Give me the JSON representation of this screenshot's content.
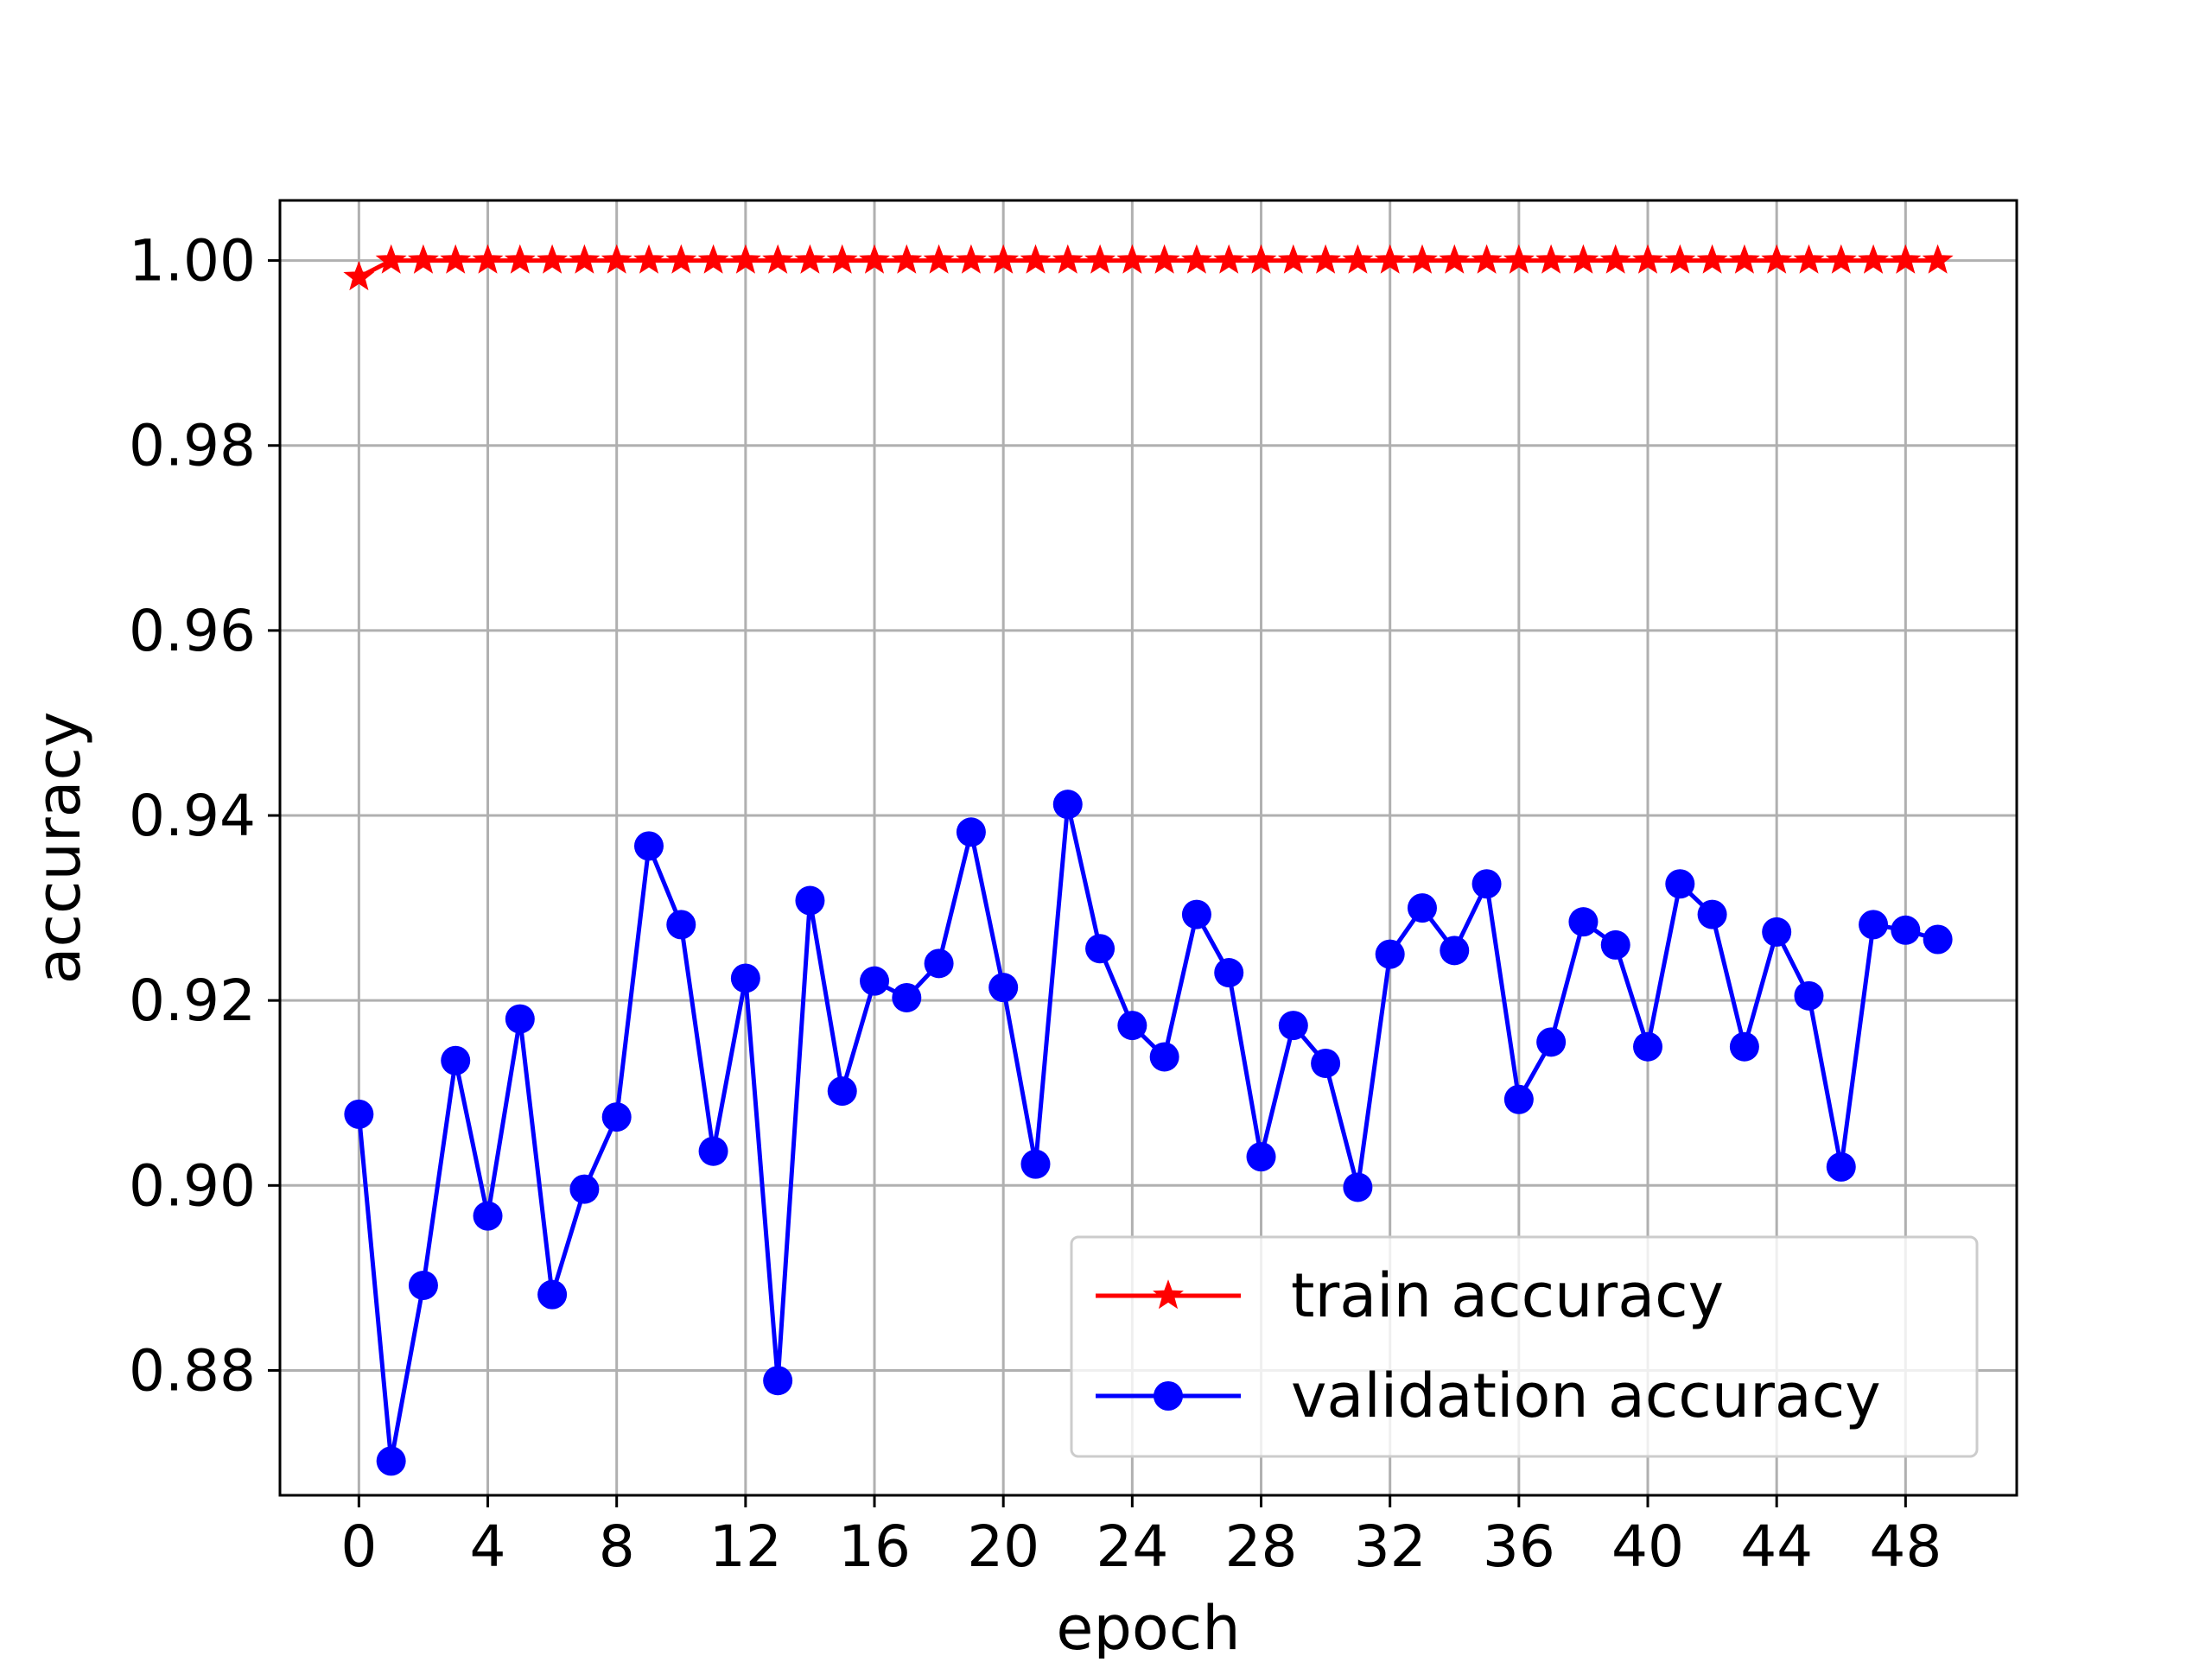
{
  "chart_data": {
    "type": "line",
    "title": "",
    "xlabel": "epoch",
    "ylabel": "accuracy",
    "xlim": [
      -2.45,
      51.45
    ],
    "ylim": [
      0.8665,
      1.0065
    ],
    "xticks": [
      0,
      4,
      8,
      12,
      16,
      20,
      24,
      28,
      32,
      36,
      40,
      44,
      48
    ],
    "yticks": [
      0.88,
      0.9,
      0.92,
      0.94,
      0.96,
      0.98,
      1.0
    ],
    "xtick_labels": [
      "0",
      "4",
      "8",
      "12",
      "16",
      "20",
      "24",
      "28",
      "32",
      "36",
      "40",
      "44",
      "48"
    ],
    "ytick_labels": [
      "0.88",
      "0.90",
      "0.92",
      "0.94",
      "0.96",
      "0.98",
      "1.00"
    ],
    "grid": true,
    "legend_position": "lower-right",
    "x": [
      0,
      1,
      2,
      3,
      4,
      5,
      6,
      7,
      8,
      9,
      10,
      11,
      12,
      13,
      14,
      15,
      16,
      17,
      18,
      19,
      20,
      21,
      22,
      23,
      24,
      25,
      26,
      27,
      28,
      29,
      30,
      31,
      32,
      33,
      34,
      35,
      36,
      37,
      38,
      39,
      40,
      41,
      42,
      43,
      44,
      45,
      46,
      47,
      48,
      49
    ],
    "series": [
      {
        "name": "train accuracy",
        "color": "#ff0000",
        "marker": "star",
        "values": [
          0.9982,
          1.0,
          1.0,
          1.0,
          1.0,
          1.0,
          1.0,
          1.0,
          1.0,
          1.0,
          1.0,
          1.0,
          1.0,
          1.0,
          1.0,
          1.0,
          1.0,
          1.0,
          1.0,
          1.0,
          1.0,
          1.0,
          1.0,
          1.0,
          1.0,
          1.0,
          1.0,
          1.0,
          1.0,
          1.0,
          1.0,
          1.0,
          1.0,
          1.0,
          1.0,
          1.0,
          1.0,
          1.0,
          1.0,
          1.0,
          1.0,
          1.0,
          1.0,
          1.0,
          1.0,
          1.0,
          1.0,
          1.0,
          1.0,
          1.0
        ]
      },
      {
        "name": "validation accuracy",
        "color": "#0000ff",
        "marker": "circle",
        "values": [
          0.9077,
          0.8702,
          0.8892,
          0.9135,
          0.8967,
          0.918,
          0.8882,
          0.8996,
          0.9074,
          0.9367,
          0.9282,
          0.9037,
          0.9224,
          0.8789,
          0.9308,
          0.9102,
          0.9221,
          0.9203,
          0.924,
          0.9382,
          0.9214,
          0.9023,
          0.9412,
          0.9256,
          0.9173,
          0.9139,
          0.9293,
          0.923,
          0.9031,
          0.9173,
          0.9132,
          0.8998,
          0.925,
          0.93,
          0.9254,
          0.9326,
          0.9093,
          0.9155,
          0.9285,
          0.926,
          0.915,
          0.9326,
          0.9293,
          0.915,
          0.9274,
          0.9205,
          0.902,
          0.9282,
          0.9276,
          0.9266
        ]
      }
    ]
  }
}
